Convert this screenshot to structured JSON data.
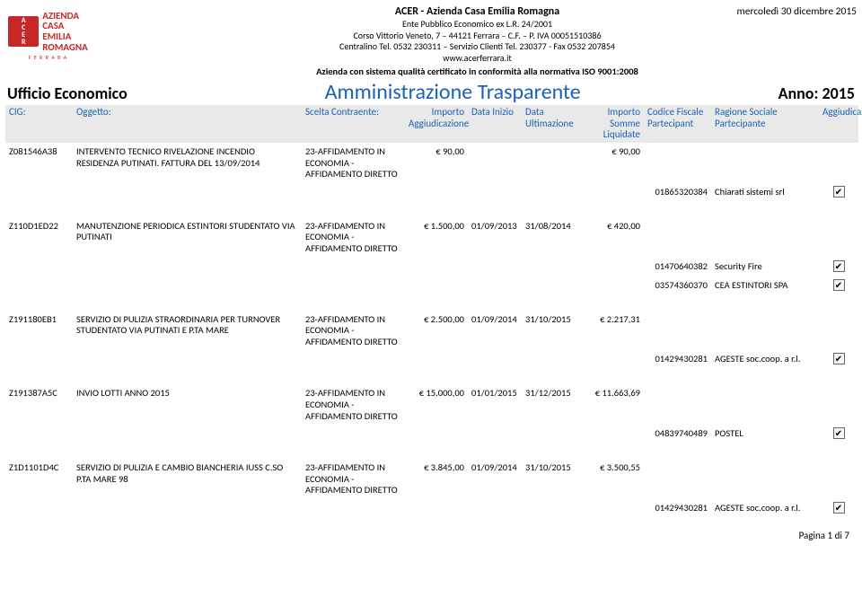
{
  "date_stamp": "mercoledì 30 dicembre 2015",
  "logo": {
    "short": "ACER",
    "line1": "AZIENDA",
    "line2": "CASA",
    "line3": "EMILIA",
    "line4": "ROMAGNA",
    "bottom": "F E R R A R A"
  },
  "header": {
    "h1": "ACER - Azienda Casa Emilia Romagna",
    "l1": "Ente Pubblico Economico ex L.R. 24/2001",
    "l2": "Corso Vittorio Veneto, 7 – 44121 Ferrara – C.F. – P. IVA 00051510386",
    "l3": "Centralino Tel. 0532 230311 – Servizio Clienti Tel. 230377 -  Fax  0532 207854",
    "l4": "www.acerferrara.it",
    "iso": "Azienda con sistema qualità certificato in conformità alla normativa ISO 9001:2008"
  },
  "title": {
    "ufficio": "Ufficio Economico",
    "main": "Amministrazione Trasparente",
    "anno": "Anno: 2015"
  },
  "columns": {
    "cig": "CIG:",
    "ogg": "Oggetto:",
    "scelta": "Scelta Contraente:",
    "imp": "Importo Aggiudicazione",
    "di": "Data Inizio",
    "du": "Data Ultimazione",
    "isl": "Importo Somme Liquidate",
    "cf": "Codice Fiscale Partecipant",
    "rs": "Ragione Sociale Partecipante",
    "agg": "Aggiudicazione"
  },
  "scelta_text": "23-AFFIDAMENTO IN ECONOMIA - AFFIDAMENTO DIRETTO",
  "rows": [
    {
      "cig": "Z081546A38",
      "oggetto": "INTERVENTO TECNICO RIVELAZIONE INCENDIO RESIDENZA PUTINATI. FATTURA DEL 13/09/2014",
      "importo": "€ 90,00",
      "data_inizio": "",
      "data_ult": "",
      "somme": "€ 90,00",
      "participants": [
        {
          "cf": "01865320384",
          "rs": "Chiarati sistemi srl",
          "agg": true
        }
      ]
    },
    {
      "cig": "Z110D1ED22",
      "oggetto": "MANUTENZIONE PERIODICA ESTINTORI STUDENTATO VIA PUTINATI",
      "importo": "€ 1.500,00",
      "data_inizio": "01/09/2013",
      "data_ult": "31/08/2014",
      "somme": "€ 420,00",
      "participants": [
        {
          "cf": "01470640382",
          "rs": "Security Fire",
          "agg": true
        },
        {
          "cf": "03574360370",
          "rs": "CEA ESTINTORI SPA",
          "agg": true
        }
      ]
    },
    {
      "cig": "Z191180EB1",
      "oggetto": "SERVIZIO DI PULIZIA STRAORDINARIA PER TURNOVER STUDENTATO VIA PUTINATI E P.TA MARE",
      "importo": "€ 2.500,00",
      "data_inizio": "01/09/2014",
      "data_ult": "31/10/2015",
      "somme": "€ 2.217,31",
      "participants": [
        {
          "cf": "01429430281",
          "rs": "AGESTE soc.coop. a r.l.",
          "agg": true
        }
      ]
    },
    {
      "cig": "Z191387A5C",
      "oggetto": "INVIO LOTTI ANNO 2015",
      "importo": "€ 15.000,00",
      "data_inizio": "01/01/2015",
      "data_ult": "31/12/2015",
      "somme": "€ 11.663,69",
      "participants": [
        {
          "cf": "04839740489",
          "rs": "POSTEL",
          "agg": true
        }
      ]
    },
    {
      "cig": "Z1D1101D4C",
      "oggetto": "SERVIZIO DI PULIZIA E CAMBIO BIANCHERIA IUSS C.SO P.TA MARE 98",
      "importo": "€ 3.845,00",
      "data_inizio": "01/09/2014",
      "data_ult": "31/10/2015",
      "somme": "€ 3.500,55",
      "participants": [
        {
          "cf": "01429430281",
          "rs": "AGESTE soc.coop. a r.l.",
          "agg": true
        }
      ]
    }
  ],
  "footer": "Pagina 1 di 7"
}
